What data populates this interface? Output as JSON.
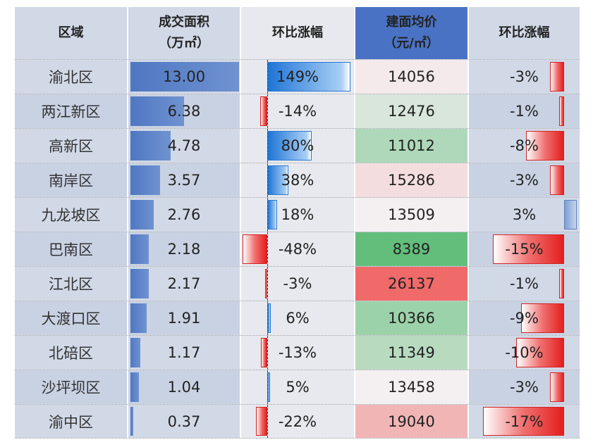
{
  "header": {
    "district": "区域",
    "area_line1": "成交面积",
    "area_line2": "（万㎡）",
    "area_change": "环比涨幅",
    "price_line1": "建面均价",
    "price_line2": "（元/㎡）",
    "price_change": "环比涨幅"
  },
  "rows": [
    {
      "district": "渝北区",
      "area": "13.00",
      "area_change": "149%",
      "area_change_value": 149,
      "price": "14056",
      "price_value": 14056,
      "price_change": "-3%",
      "price_change_value": -3
    },
    {
      "district": "两江新区",
      "area": "6.38",
      "area_change": "-14%",
      "area_change_value": -14,
      "price": "12476",
      "price_value": 12476,
      "price_change": "-1%",
      "price_change_value": -1
    },
    {
      "district": "高新区",
      "area": "4.78",
      "area_change": "80%",
      "area_change_value": 80,
      "price": "11012",
      "price_value": 11012,
      "price_change": "-8%",
      "price_change_value": -8
    },
    {
      "district": "南岸区",
      "area": "3.57",
      "area_change": "38%",
      "area_change_value": 38,
      "price": "15286",
      "price_value": 15286,
      "price_change": "-3%",
      "price_change_value": -3
    },
    {
      "district": "九龙坡区",
      "area": "2.76",
      "area_change": "18%",
      "area_change_value": 18,
      "price": "13509",
      "price_value": 13509,
      "price_change": "3%",
      "price_change_value": 3
    },
    {
      "district": "巴南区",
      "area": "2.18",
      "area_change": "-48%",
      "area_change_value": -48,
      "price": "8389",
      "price_value": 8389,
      "price_change": "-15%",
      "price_change_value": -15
    },
    {
      "district": "江北区",
      "area": "2.17",
      "area_change": "-3%",
      "area_change_value": -3,
      "price": "26137",
      "price_value": 26137,
      "price_change": "-1%",
      "price_change_value": -1
    },
    {
      "district": "大渡口区",
      "area": "1.91",
      "area_change": "6%",
      "area_change_value": 6,
      "price": "10366",
      "price_value": 10366,
      "price_change": "-9%",
      "price_change_value": -9
    },
    {
      "district": "北碚区",
      "area": "1.17",
      "area_change": "-13%",
      "area_change_value": -13,
      "price": "11349",
      "price_value": 11349,
      "price_change": "-10%",
      "price_change_value": -10
    },
    {
      "district": "沙坪坝区",
      "area": "1.04",
      "area_change": "5%",
      "area_change_value": 5,
      "price": "13458",
      "price_value": 13458,
      "price_change": "-3%",
      "price_change_value": -3
    },
    {
      "district": "渝中区",
      "area": "0.37",
      "area_change": "-22%",
      "area_change_value": -22,
      "price": "19040",
      "price_value": 19040,
      "price_change": "-17%",
      "price_change_value": -17
    }
  ],
  "colors": {
    "header_bg": "#4a72c4",
    "area_bar": "#4f77c2",
    "positive_bar": "#1e74d6",
    "negative_bar": "#e41e1e",
    "price_low": "#63be7b",
    "price_mid": "#f4f0f2",
    "price_high": "#f06a6a"
  }
}
